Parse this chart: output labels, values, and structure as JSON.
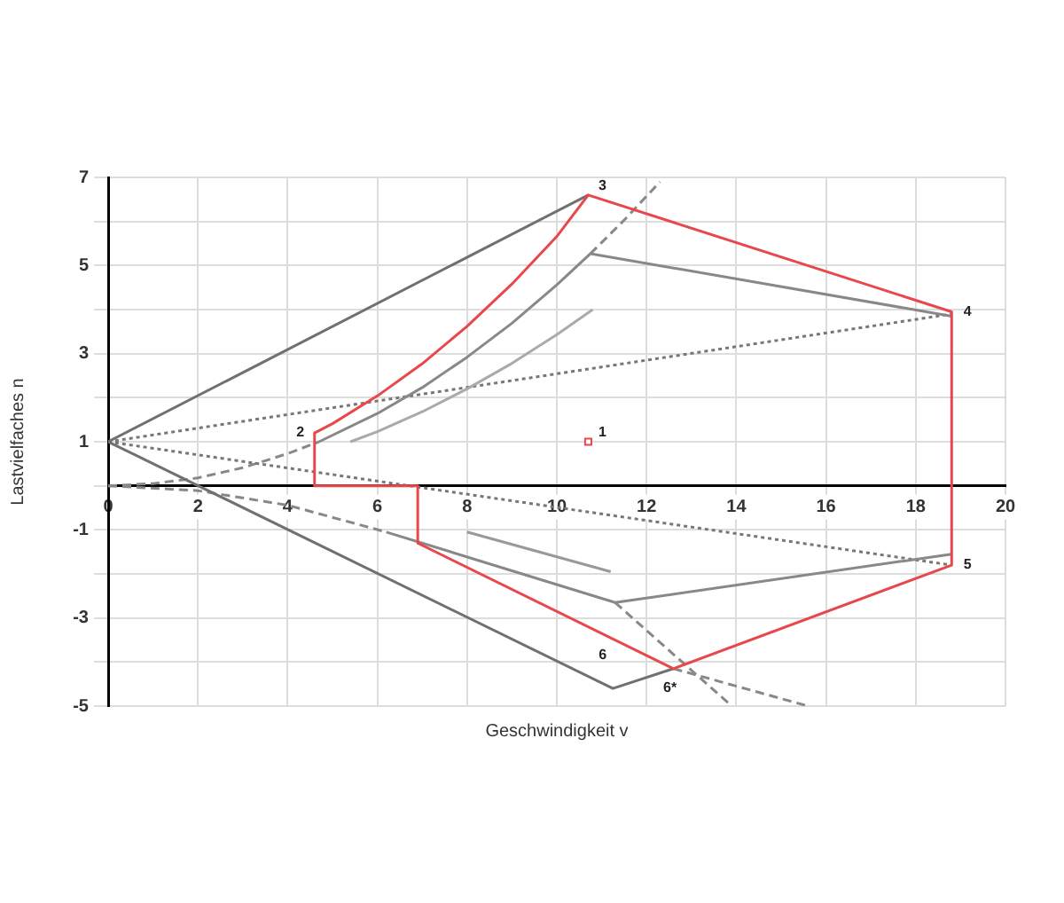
{
  "chart_data": {
    "type": "line",
    "xlabel": "Geschwindigkeit v",
    "ylabel": "Lastvielfaches n",
    "xlim": [
      0,
      20
    ],
    "xticks": [
      0,
      2,
      4,
      6,
      8,
      10,
      12,
      14,
      16,
      18,
      20
    ],
    "ylim": [
      -5,
      7
    ],
    "yticks": [
      -5,
      {
        "value": -4,
        "label": null
      },
      -3,
      {
        "value": -2,
        "label": null
      },
      -1,
      {
        "value": 0,
        "label": null
      },
      1,
      {
        "value": 2,
        "label": null
      },
      3,
      {
        "value": 4,
        "label": null
      },
      5,
      {
        "value": 6,
        "label": null
      },
      7
    ],
    "grid": true,
    "legend": false,
    "marker": "none",
    "series": [
      {
        "color": "#e8474c",
        "x": [
          4.6,
          5,
          6,
          7,
          8,
          9,
          10,
          10.7,
          18.8
        ],
        "values": [
          1.2,
          1.41,
          2.04,
          2.77,
          3.62,
          4.58,
          5.66,
          6.6,
          3.95
        ]
      },
      {
        "color": "#e8474c",
        "x": [
          18.8,
          18.8
        ],
        "values": [
          3.95,
          -1.8
        ]
      },
      {
        "color": "#e8474c",
        "x": [
          6.9,
          12.6,
          18.8
        ],
        "values": [
          -1.3,
          -4.15,
          -1.8
        ]
      },
      {
        "color": "#e8474c",
        "x": [
          4.6,
          4.6,
          6.9,
          6.9
        ],
        "values": [
          1.2,
          0,
          0,
          -1.3
        ]
      },
      {
        "color": "#707070",
        "x": [
          10.7,
          0,
          11.25,
          12.6
        ],
        "values": [
          6.6,
          1,
          -4.6,
          -4.15
        ]
      },
      {
        "color": "#888888",
        "x": [
          4.7,
          6,
          7,
          8,
          9,
          10,
          10.75,
          18.8
        ],
        "values": [
          1.0,
          1.64,
          2.23,
          2.92,
          3.69,
          4.56,
          5.27,
          3.85
        ]
      },
      {
        "color": "#aaaaaa",
        "x": [
          5.4,
          6,
          7,
          8,
          9,
          10,
          10.8
        ],
        "values": [
          1.0,
          1.23,
          1.68,
          2.2,
          2.78,
          3.43,
          4.0
        ]
      },
      {
        "color": "#888888",
        "x": [
          6.2,
          11.3,
          18.8
        ],
        "values": [
          -1.05,
          -2.65,
          -1.55
        ]
      },
      {
        "color": "#999999",
        "x": [
          8,
          11.2
        ],
        "values": [
          -1.05,
          -1.95
        ]
      },
      {
        "color": "#777777",
        "line_style": "dotted",
        "x": [
          0,
          18.8
        ],
        "values": [
          1,
          3.9
        ]
      },
      {
        "color": "#777777",
        "line_style": "dotted",
        "x": [
          0,
          18.8
        ],
        "values": [
          1,
          -1.8
        ]
      },
      {
        "color": "#888888",
        "line_style": "dashed",
        "x": [
          0,
          1,
          2,
          3,
          4,
          4.7
        ],
        "values": [
          0,
          0.05,
          0.18,
          0.41,
          0.73,
          1.0
        ]
      },
      {
        "color": "#888888",
        "line_style": "dashed",
        "x": [
          10.75,
          11.5,
          12.3
        ],
        "values": [
          5.27,
          6.03,
          6.9
        ]
      },
      {
        "color": "#888888",
        "line_style": "dashed",
        "x": [
          0,
          2,
          4,
          6.2
        ],
        "values": [
          0,
          -0.11,
          -0.44,
          -1.05
        ]
      },
      {
        "color": "#888888",
        "line_style": "dashed",
        "x": [
          11.3,
          13.9
        ],
        "values": [
          -2.65,
          -5
        ]
      },
      {
        "color": "#888888",
        "line_style": "dashed",
        "x": [
          12.6,
          15.6
        ],
        "values": [
          -4.15,
          -5
        ]
      },
      {
        "type": "scatter",
        "marker": "square",
        "color": "#e8474c",
        "x": [
          10.7
        ],
        "values": [
          1.0
        ]
      }
    ],
    "annotations": [
      {
        "text": "1",
        "x": 10.7,
        "y": 1.0
      },
      {
        "text": "2",
        "x": 4.6,
        "y": 1.2
      },
      {
        "text": "3",
        "x": 10.7,
        "y": 6.6
      },
      {
        "text": "4",
        "x": 18.8,
        "y": 3.95
      },
      {
        "text": "5",
        "x": 18.8,
        "y": -1.8
      },
      {
        "text": "6",
        "x": 11.1,
        "y": -3.4
      },
      {
        "text": "6*",
        "x": 12.6,
        "y": -4.15
      }
    ]
  }
}
